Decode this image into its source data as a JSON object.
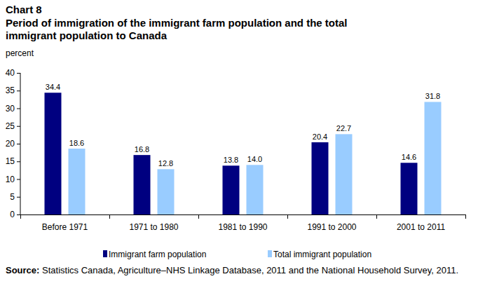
{
  "chart_data": {
    "type": "bar",
    "title": "Chart 8",
    "subtitle": "Period of immigration of the immigrant farm population and the total immigrant population to Canada",
    "y_label": "percent",
    "source_label": "Source:",
    "source": "Statistics Canada, Agriculture–NHS Linkage Database, 2011 and the National Household Survey, 2011.",
    "categories": [
      "Before 1971",
      "1971 to 1980",
      "1981 to 1990",
      "1991 to 2000",
      "2001 to 2011"
    ],
    "series": [
      {
        "name": "Immigrant farm population",
        "color": "#000080",
        "values": [
          34.4,
          16.8,
          13.8,
          20.4,
          14.6
        ],
        "value_labels": [
          "34.4",
          "16.8",
          "13.8",
          "20.4",
          "14.6"
        ]
      },
      {
        "name": "Total immigrant population",
        "color": "#99ccff",
        "values": [
          18.6,
          12.8,
          14.0,
          22.7,
          31.8
        ],
        "value_labels": [
          "18.6",
          "12.8",
          "14.0",
          "22.7",
          "31.8"
        ]
      }
    ],
    "ylim": [
      0,
      40
    ],
    "yticks": [
      0,
      5,
      10,
      15,
      20,
      25,
      30,
      35,
      40
    ],
    "grid": false,
    "legend": "bottom",
    "data_labels": true
  }
}
